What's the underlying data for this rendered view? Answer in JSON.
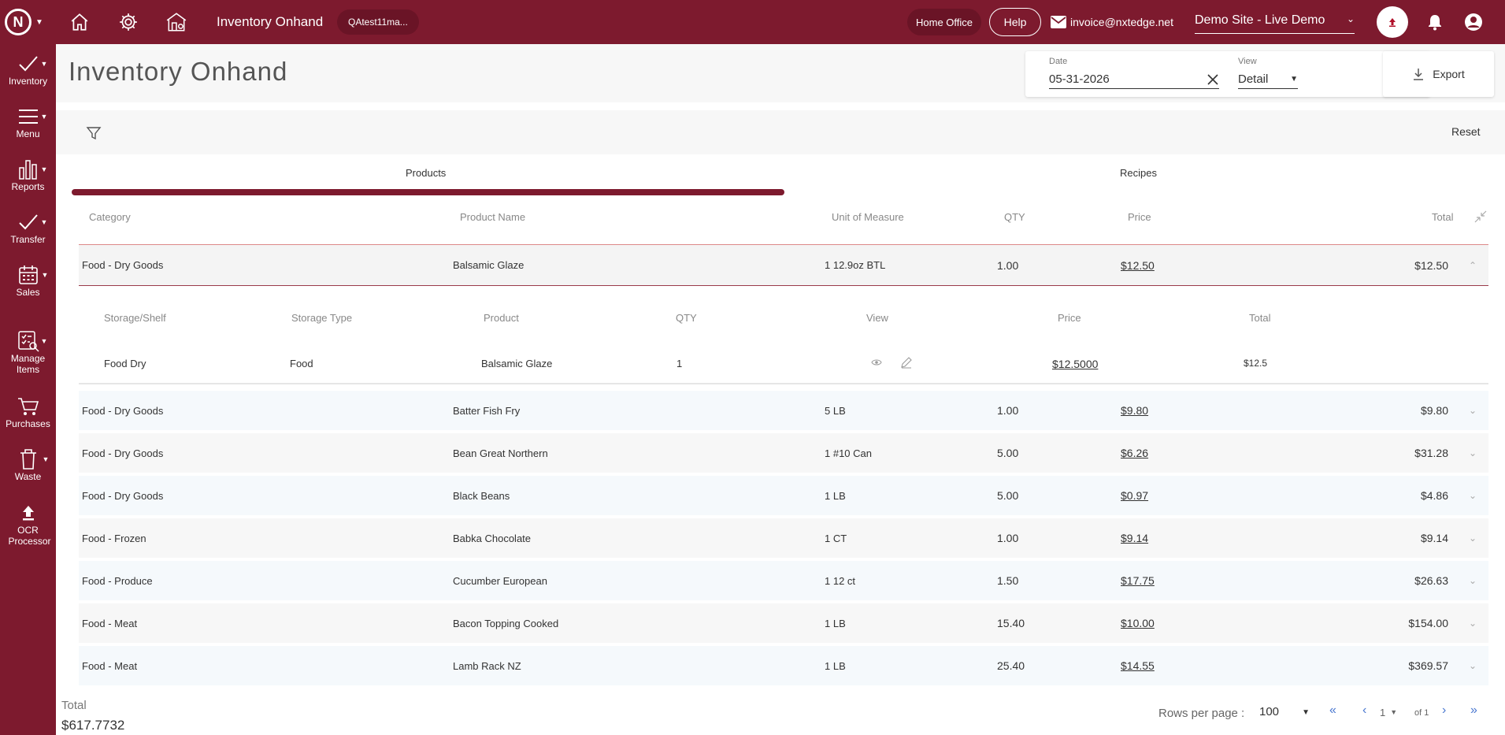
{
  "colors": {
    "brand": "#7d1a2e",
    "link_blue": "#4a78d0"
  },
  "topbar": {
    "title": "Inventory Onhand",
    "user_chip": "QAtest11ma...",
    "home_office": "Home Office",
    "help": "Help",
    "email": "invoice@nxtedge.net",
    "site": "Demo Site - Live Demo"
  },
  "sidebar": {
    "items": [
      {
        "label": "Inventory",
        "icon": "check-icon"
      },
      {
        "label": "Menu",
        "icon": "menu-icon"
      },
      {
        "label": "Reports",
        "icon": "bar-chart-icon"
      },
      {
        "label": "Transfer",
        "icon": "check-icon"
      },
      {
        "label": "Sales",
        "icon": "calendar-icon"
      },
      {
        "label": "Manage Items",
        "icon": "manage-items-icon"
      },
      {
        "label": "Purchases",
        "icon": "cart-icon"
      },
      {
        "label": "Waste",
        "icon": "trash-icon"
      },
      {
        "label": "OCR Processor",
        "icon": "upload-icon"
      }
    ]
  },
  "header": {
    "page_title": "Inventory Onhand",
    "date_label": "Date",
    "date_value": "05-31-2026",
    "view_label": "View",
    "view_value": "Detail",
    "export_label": "Export"
  },
  "filter": {
    "reset_label": "Reset"
  },
  "tabs": [
    {
      "label": "Products",
      "active": true
    },
    {
      "label": "Recipes",
      "active": false
    }
  ],
  "table": {
    "columns": [
      "Category",
      "Product Name",
      "Unit of Measure",
      "QTY",
      "Price",
      "Total"
    ],
    "rows": [
      {
        "category": "Food - Dry Goods",
        "product": "Balsamic Glaze",
        "uom": "1 12.9oz BTL",
        "qty": "1.00",
        "price": "$12.50",
        "total": "$12.50",
        "expanded": true
      },
      {
        "category": "Food - Dry Goods",
        "product": "Batter Fish Fry",
        "uom": "5 LB",
        "qty": "1.00",
        "price": "$9.80",
        "total": "$9.80"
      },
      {
        "category": "Food - Dry Goods",
        "product": "Bean Great Northern",
        "uom": "1 #10 Can",
        "qty": "5.00",
        "price": "$6.26",
        "total": "$31.28"
      },
      {
        "category": "Food - Dry Goods",
        "product": "Black Beans",
        "uom": "1 LB",
        "qty": "5.00",
        "price": "$0.97",
        "total": "$4.86"
      },
      {
        "category": "Food - Frozen",
        "product": "Babka Chocolate",
        "uom": "1 CT",
        "qty": "1.00",
        "price": "$9.14",
        "total": "$9.14"
      },
      {
        "category": "Food - Produce",
        "product": "Cucumber European",
        "uom": "1 12 ct",
        "qty": "1.50",
        "price": "$17.75",
        "total": "$26.63"
      },
      {
        "category": "Food - Meat",
        "product": "Bacon Topping Cooked",
        "uom": "1 LB",
        "qty": "15.40",
        "price": "$10.00",
        "total": "$154.00"
      },
      {
        "category": "Food - Meat",
        "product": "Lamb Rack NZ",
        "uom": "1 LB",
        "qty": "25.40",
        "price": "$14.55",
        "total": "$369.57"
      }
    ],
    "detail": {
      "columns": [
        "Storage/Shelf",
        "Storage Type",
        "Product",
        "QTY",
        "View",
        "Price",
        "Total"
      ],
      "row": {
        "shelf": "Food Dry",
        "type": "Food",
        "product": "Balsamic Glaze",
        "qty": "1",
        "price": "$12.5000",
        "total": "$12.5"
      }
    }
  },
  "footer": {
    "total_label": "Total",
    "total_value": "$617.7732",
    "rows_per_page_label": "Rows per page :",
    "rows_per_page_value": "100",
    "page_value": "1",
    "page_of": "of 1"
  }
}
